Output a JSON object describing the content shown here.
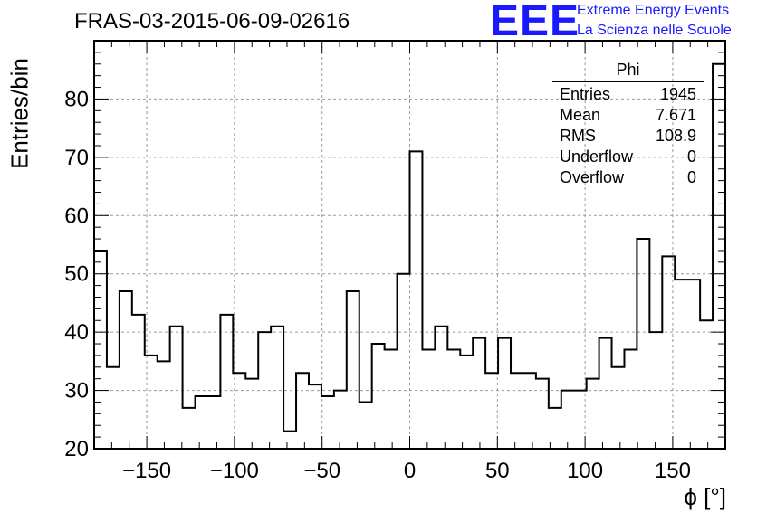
{
  "header": {
    "run_title": "FRAS-03-2015-06-09-02616",
    "logo_text": "EEE",
    "logo_line1": "Extreme Energy Events",
    "logo_line2": "La Scienza nelle Scuole"
  },
  "stats_box": {
    "title": "Phi",
    "rows": [
      {
        "label": "Entries",
        "value": "1945"
      },
      {
        "label": "Mean",
        "value": "7.671"
      },
      {
        "label": "RMS",
        "value": "108.9"
      },
      {
        "label": "Underflow",
        "value": "0"
      },
      {
        "label": "Overflow",
        "value": "0"
      }
    ]
  },
  "colors": {
    "line": "#000000",
    "grid": "#9a9a9a",
    "logo": "#1a1aff"
  },
  "chart_data": {
    "type": "bar",
    "title": "FRAS-03-2015-06-09-02616",
    "xlabel": "ϕ [°]",
    "ylabel": "Entries/bin",
    "xlim": [
      -180,
      180
    ],
    "ylim": [
      20,
      90
    ],
    "bin_width": 7.2,
    "xticks": [
      -150,
      -100,
      -50,
      0,
      50,
      100,
      150
    ],
    "yticks": [
      20,
      30,
      40,
      50,
      60,
      70,
      80
    ],
    "grid": true,
    "values": [
      54,
      34,
      47,
      43,
      36,
      35,
      41,
      27,
      29,
      29,
      43,
      33,
      32,
      40,
      41,
      23,
      33,
      31,
      29,
      30,
      47,
      28,
      38,
      37,
      50,
      71,
      37,
      41,
      37,
      36,
      39,
      33,
      39,
      33,
      33,
      32,
      27,
      30,
      30,
      32,
      39,
      34,
      37,
      56,
      40,
      53,
      49,
      49,
      42,
      86
    ]
  }
}
